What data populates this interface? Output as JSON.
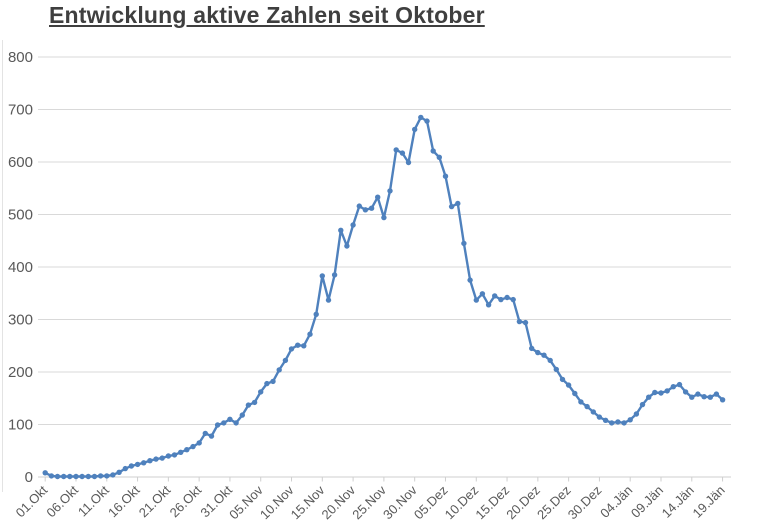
{
  "page": {
    "title": "Entwicklung aktive Zahlen seit Oktober"
  },
  "chart_data": {
    "type": "line",
    "title": "Entwicklung aktive Zahlen seit Oktober",
    "x_tick_labels": [
      "01.Okt",
      "06.Okt",
      "11.Okt",
      "16.Okt",
      "21.Okt",
      "26.Okt",
      "31.Okt",
      "05.Nov",
      "10.Nov",
      "15.Nov",
      "20.Nov",
      "25.Nov",
      "30.Nov",
      "05.Dez",
      "10.Dez",
      "15.Dez",
      "20.Dez",
      "25.Dez",
      "30.Dez",
      "04.Jän",
      "09.Jän",
      "14.Jän",
      "19.Jän"
    ],
    "x_tick_interval_days": 5,
    "x_start": "01.Okt",
    "x_end": "19.Jän",
    "values": [
      8,
      2,
      1,
      1,
      1,
      1,
      1,
      1,
      1,
      2,
      2,
      4,
      9,
      16,
      21,
      24,
      27,
      31,
      34,
      36,
      40,
      42,
      47,
      52,
      58,
      65,
      83,
      78,
      99,
      103,
      110,
      103,
      118,
      137,
      142,
      162,
      178,
      182,
      204,
      222,
      244,
      251,
      250,
      272,
      310,
      383,
      337,
      385,
      470,
      440,
      480,
      516,
      509,
      512,
      533,
      494,
      545,
      623,
      617,
      599,
      662,
      685,
      678,
      621,
      609,
      573,
      515,
      521,
      445,
      375,
      337,
      349,
      328,
      345,
      338,
      342,
      338,
      296,
      294,
      245,
      237,
      232,
      222,
      205,
      186,
      175,
      159,
      143,
      134,
      124,
      114,
      108,
      103,
      105,
      103,
      109,
      120,
      138,
      152,
      161,
      160,
      164,
      172,
      176,
      162,
      152,
      158,
      153,
      152,
      158,
      147
    ],
    "ylim": [
      0,
      800
    ],
    "y_ticks": [
      0,
      100,
      200,
      300,
      400,
      500,
      600,
      700,
      800
    ],
    "grid": "horizontal",
    "legend": "none",
    "marker": "circle",
    "colors": {
      "line": "#4f81bd",
      "grid": "#d9d9d9",
      "axis": "#cfcfcf",
      "labels": "#595959",
      "title": "#3f3f3f"
    }
  }
}
